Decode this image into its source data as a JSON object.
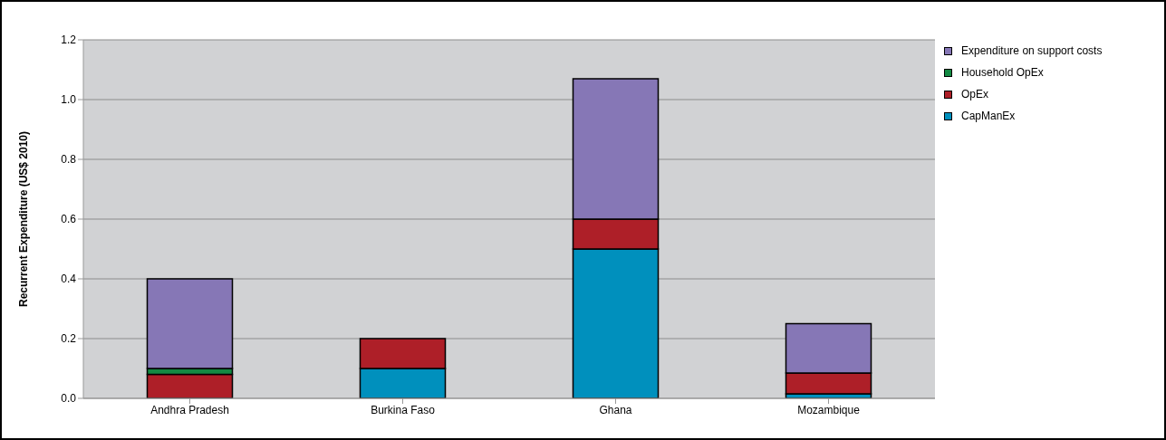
{
  "chart_data": {
    "type": "bar",
    "stacked": true,
    "ylabel": "Recurrent Expenditure (US$ 2010)",
    "categories": [
      "Andhra Pradesh",
      "Burkina Faso",
      "Ghana",
      "Mozambique"
    ],
    "series": [
      {
        "name": "CapManEx",
        "color": "#0090bd",
        "values": [
          0,
          0.1,
          0.5,
          0.015
        ]
      },
      {
        "name": "OpEx",
        "color": "#ae1f28",
        "values": [
          0.08,
          0.1,
          0.1,
          0.07
        ]
      },
      {
        "name": "Household OpEx",
        "color": "#138a43",
        "values": [
          0.02,
          0,
          0,
          0
        ]
      },
      {
        "name": "Expenditure on support costs",
        "color": "#8677b6",
        "values": [
          0.3,
          0,
          0.47,
          0.165
        ]
      }
    ],
    "ylim": [
      0,
      1.2
    ],
    "yticks": [
      {
        "value": 0,
        "label": "0.0"
      },
      0.2,
      0.4,
      0.6,
      0.8,
      {
        "value": 1,
        "label": "1.0"
      },
      1.2
    ],
    "grid": "y",
    "legend": "top right"
  }
}
